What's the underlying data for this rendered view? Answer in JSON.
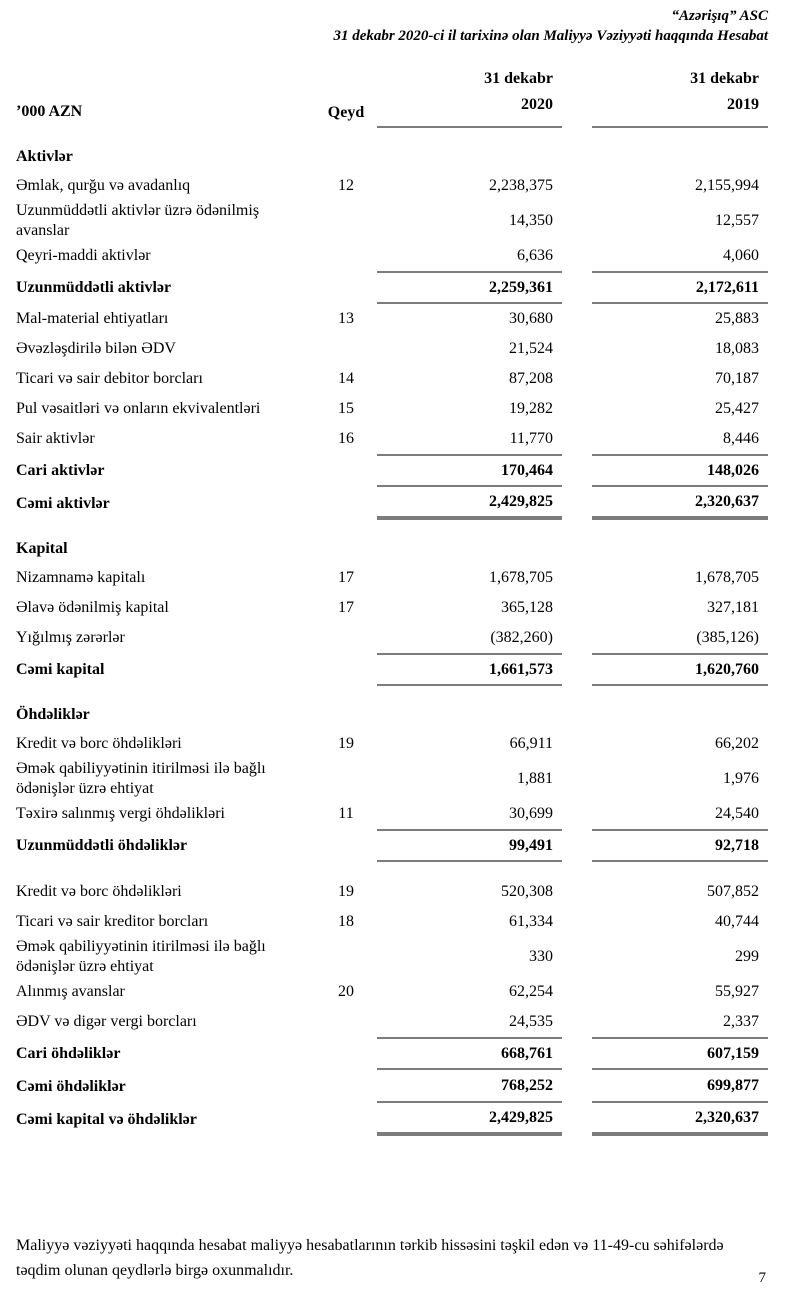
{
  "header": {
    "company": "“Azərişıq” ASC",
    "subtitle": "31 dekabr 2020-ci il tarixinə olan Maliyyə Vəziyyəti haqqında Hesabat"
  },
  "table": {
    "unit_label": "’000 AZN",
    "note_label": "Qeyd",
    "col_2020": {
      "line1": "31 dekabr",
      "line2": "2020"
    },
    "col_2019": {
      "line1": "31 dekabr",
      "line2": "2019"
    },
    "rows": [
      {
        "kind": "section",
        "label": "Aktivlər",
        "gap": true
      },
      {
        "kind": "item",
        "label": "Əmlak, qurğu və avadanlıq",
        "note": "12",
        "v2020": "2,238,375",
        "v2019": "2,155,994"
      },
      {
        "kind": "item",
        "label": "Uzunmüddətli aktivlər üzrə ödənilmiş avanslar",
        "note": "",
        "v2020": "14,350",
        "v2019": "12,557"
      },
      {
        "kind": "item",
        "label": "Qeyri-maddi aktivlər",
        "note": "",
        "v2020": "6,636",
        "v2019": "4,060"
      },
      {
        "kind": "total",
        "label": "Uzunmüddətli aktivlər",
        "note": "",
        "v2020": "2,259,361",
        "v2019": "2,172,611",
        "rule_above": true,
        "rule_below": "thin"
      },
      {
        "kind": "item",
        "label": "Mal-material ehtiyatları",
        "note": "13",
        "v2020": "30,680",
        "v2019": "25,883"
      },
      {
        "kind": "item",
        "label": "Əvəzləşdirilə bilən ƏDV",
        "note": "",
        "v2020": "21,524",
        "v2019": "18,083"
      },
      {
        "kind": "item",
        "label": "Ticari və sair debitor borcları",
        "note": "14",
        "v2020": "87,208",
        "v2019": "70,187"
      },
      {
        "kind": "item",
        "label": "Pul vəsaitləri və onların ekvivalentləri",
        "note": "15",
        "v2020": "19,282",
        "v2019": "25,427"
      },
      {
        "kind": "item",
        "label": "Sair aktivlər",
        "note": "16",
        "v2020": "11,770",
        "v2019": "8,446"
      },
      {
        "kind": "total",
        "label": "Cari aktivlər",
        "note": "",
        "v2020": "170,464",
        "v2019": "148,026",
        "rule_above": true,
        "rule_below": "thin"
      },
      {
        "kind": "total",
        "label": "Cəmi aktivlər",
        "note": "",
        "v2020": "2,429,825",
        "v2019": "2,320,637",
        "rule_below": "thick"
      },
      {
        "kind": "section",
        "label": "Kapital",
        "gap": true
      },
      {
        "kind": "item",
        "label": "Nizamnamə kapitalı",
        "note": "17",
        "v2020": "1,678,705",
        "v2019": "1,678,705"
      },
      {
        "kind": "item",
        "label": "Əlavə ödənilmiş kapital",
        "note": "17",
        "v2020": "365,128",
        "v2019": "327,181"
      },
      {
        "kind": "item",
        "label": "Yığılmış zərərlər",
        "note": "",
        "v2020": "(382,260)",
        "v2019": "(385,126)"
      },
      {
        "kind": "total",
        "label": "Cəmi kapital",
        "note": "",
        "v2020": "1,661,573",
        "v2019": "1,620,760",
        "rule_above": true,
        "rule_below": "thin"
      },
      {
        "kind": "section",
        "label": "Öhdəliklər",
        "gap": true
      },
      {
        "kind": "item",
        "label": "Kredit və borc öhdəlikləri",
        "note": "19",
        "v2020": "66,911",
        "v2019": "66,202"
      },
      {
        "kind": "item",
        "label": "Əmək qabiliyyətinin itirilməsi ilə bağlı ödənişlər üzrə ehtiyat",
        "note": "",
        "v2020": "1,881",
        "v2019": "1,976"
      },
      {
        "kind": "item",
        "label": "Təxirə salınmış vergi öhdəlikləri",
        "note": "11",
        "v2020": "30,699",
        "v2019": "24,540"
      },
      {
        "kind": "total",
        "label": "Uzunmüddətli öhdəliklər",
        "note": "",
        "v2020": "99,491",
        "v2019": "92,718",
        "rule_above": true,
        "rule_below": "thin"
      },
      {
        "kind": "item",
        "label": "Kredit və borc öhdəlikləri",
        "note": "19",
        "v2020": "520,308",
        "v2019": "507,852",
        "gap": true
      },
      {
        "kind": "item",
        "label": "Ticari və sair kreditor borcları",
        "note": "18",
        "v2020": "61,334",
        "v2019": "40,744"
      },
      {
        "kind": "item",
        "label": "Əmək qabiliyyətinin itirilməsi ilə bağlı ödənişlər üzrə ehtiyat",
        "note": "",
        "v2020": "330",
        "v2019": "299"
      },
      {
        "kind": "item",
        "label": "Alınmış avanslar",
        "note": "20",
        "v2020": "62,254",
        "v2019": "55,927"
      },
      {
        "kind": "item",
        "label": "ƏDV və digər vergi borcları",
        "note": "",
        "v2020": "24,535",
        "v2019": "2,337"
      },
      {
        "kind": "total",
        "label": "Cari öhdəliklər",
        "note": "",
        "v2020": "668,761",
        "v2019": "607,159",
        "rule_above": true,
        "rule_below": "thin"
      },
      {
        "kind": "total",
        "label": "Cəmi öhdəliklər",
        "note": "",
        "v2020": "768,252",
        "v2019": "699,877",
        "rule_below": "thin"
      },
      {
        "kind": "total",
        "label": "Cəmi kapital və öhdəliklər",
        "note": "",
        "v2020": "2,429,825",
        "v2019": "2,320,637",
        "rule_below": "thick"
      }
    ]
  },
  "footer": {
    "note": "Maliyyə vəziyyəti haqqında hesabat maliyyə hesabatlarının tərkib hissəsini təşkil edən və 11-49-cu səhifələrdə təqdim olunan qeydlərlə birgə oxunmalıdır.",
    "page_number": "7"
  },
  "colors": {
    "rule": "#7c7c7c",
    "text": "#000000"
  }
}
